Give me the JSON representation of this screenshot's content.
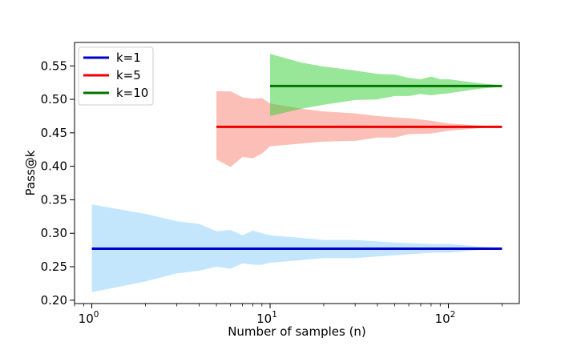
{
  "chart_data": {
    "type": "line",
    "xlabel": "Number of samples (n)",
    "ylabel": "Pass@k",
    "xscale": "log",
    "xlim": [
      0.8,
      250
    ],
    "ylim": [
      0.195,
      0.585
    ],
    "x_ticks": [
      {
        "value": 1,
        "label": "10",
        "exp": "0"
      },
      {
        "value": 10,
        "label": "10",
        "exp": "1"
      },
      {
        "value": 100,
        "label": "10",
        "exp": "2"
      }
    ],
    "y_ticks": [
      0.2,
      0.25,
      0.3,
      0.35,
      0.4,
      0.45,
      0.5,
      0.55
    ],
    "y_tick_labels": [
      "0.20",
      "0.25",
      "0.30",
      "0.35",
      "0.40",
      "0.45",
      "0.50",
      "0.55"
    ],
    "legend_position": "top-left",
    "series": [
      {
        "name": "k=1",
        "line_color": "#0000cc",
        "band_color": "#87cefa",
        "mean": 0.277,
        "x_range": [
          1,
          200
        ],
        "band_x": [
          1,
          2,
          3,
          4,
          5,
          6,
          7,
          8,
          9,
          10,
          15,
          20,
          30,
          50,
          80,
          100,
          150,
          200
        ],
        "band_upper": [
          0.343,
          0.329,
          0.318,
          0.314,
          0.303,
          0.305,
          0.297,
          0.304,
          0.3,
          0.297,
          0.293,
          0.29,
          0.29,
          0.286,
          0.284,
          0.284,
          0.28,
          0.278
        ],
        "band_lower": [
          0.212,
          0.228,
          0.24,
          0.244,
          0.25,
          0.247,
          0.255,
          0.253,
          0.253,
          0.256,
          0.26,
          0.263,
          0.263,
          0.267,
          0.271,
          0.271,
          0.275,
          0.277
        ]
      },
      {
        "name": "k=5",
        "line_color": "#ee0000",
        "band_color": "#fa8072",
        "mean": 0.459,
        "x_range": [
          5,
          200
        ],
        "band_x": [
          5,
          6,
          7,
          8,
          9,
          10,
          15,
          20,
          30,
          40,
          50,
          60,
          80,
          100,
          150,
          200
        ],
        "band_upper": [
          0.512,
          0.512,
          0.503,
          0.501,
          0.502,
          0.494,
          0.486,
          0.482,
          0.479,
          0.475,
          0.473,
          0.472,
          0.468,
          0.464,
          0.461,
          0.459
        ],
        "band_lower": [
          0.41,
          0.399,
          0.414,
          0.412,
          0.419,
          0.43,
          0.434,
          0.437,
          0.438,
          0.443,
          0.443,
          0.448,
          0.449,
          0.453,
          0.457,
          0.459
        ]
      },
      {
        "name": "k=10",
        "line_color": "#007700",
        "band_color": "#32cd32",
        "mean": 0.52,
        "x_range": [
          10,
          200
        ],
        "band_x": [
          10,
          15,
          20,
          30,
          40,
          50,
          60,
          70,
          80,
          90,
          100,
          150,
          200
        ],
        "band_upper": [
          0.568,
          0.555,
          0.549,
          0.543,
          0.538,
          0.537,
          0.532,
          0.53,
          0.534,
          0.53,
          0.53,
          0.524,
          0.521
        ],
        "band_lower": [
          0.475,
          0.486,
          0.492,
          0.499,
          0.5,
          0.505,
          0.505,
          0.508,
          0.506,
          0.508,
          0.509,
          0.516,
          0.519
        ]
      }
    ]
  }
}
